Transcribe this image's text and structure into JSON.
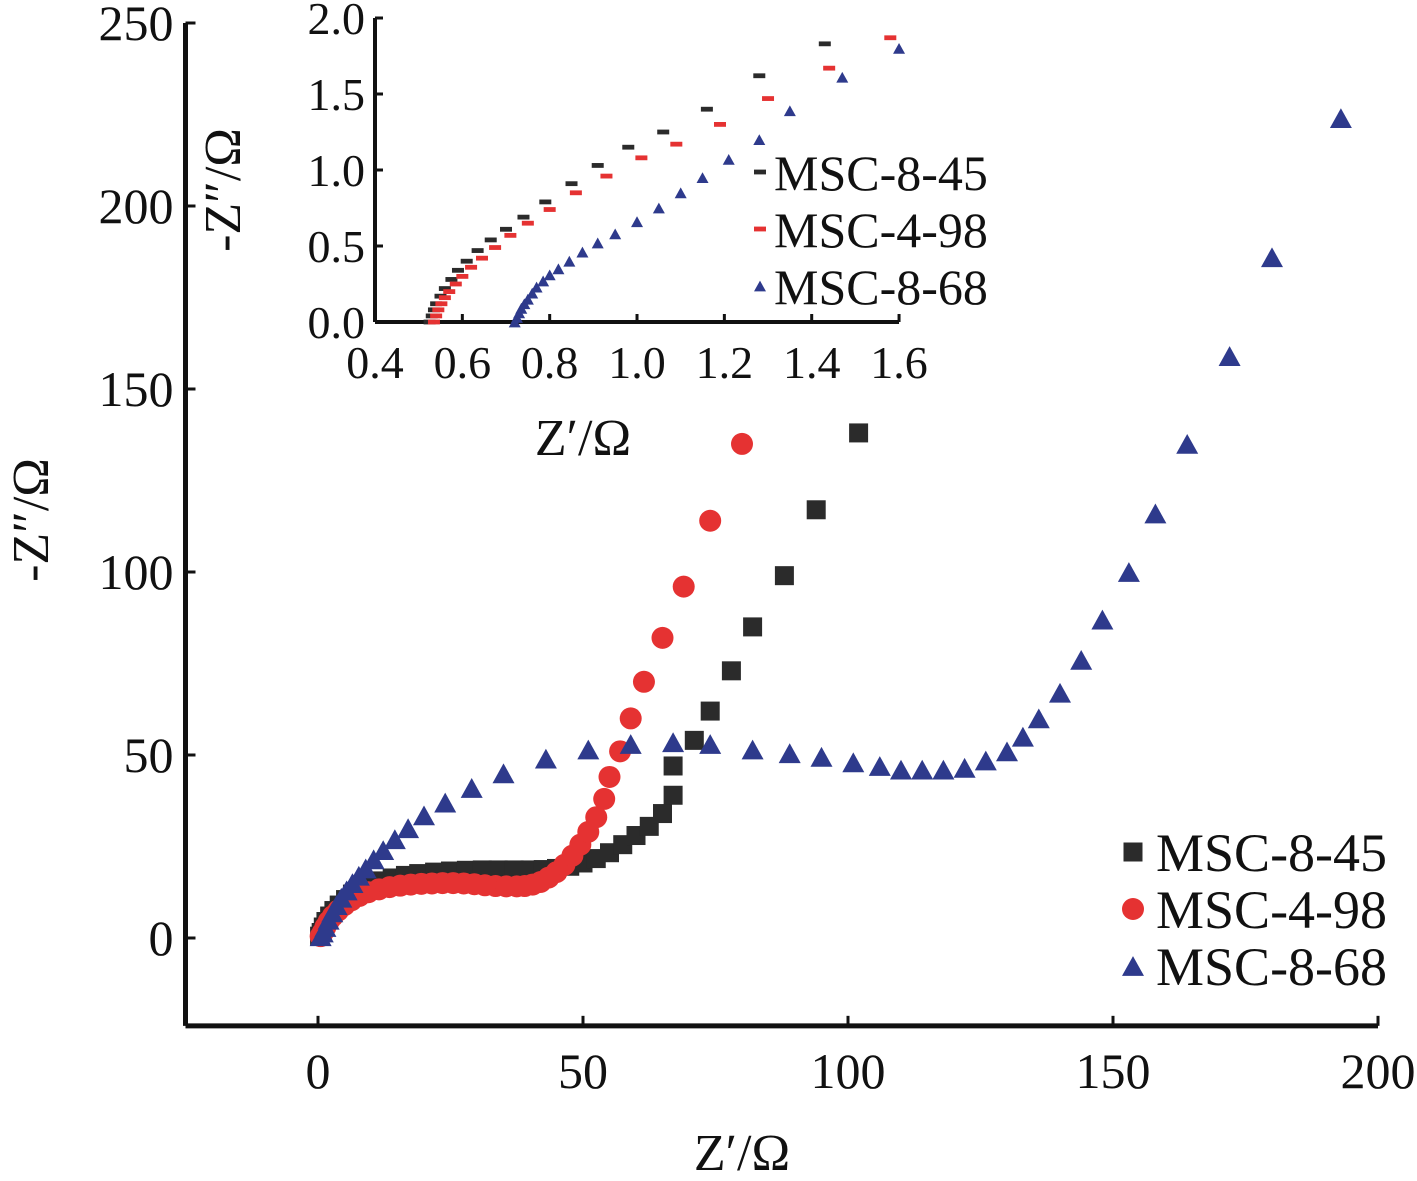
{
  "chart_data": [
    {
      "id": "main",
      "type": "scatter",
      "xlabel": "Z′/Ω",
      "ylabel": "-Z″/Ω",
      "xlim": [
        -25,
        200
      ],
      "ylim": [
        -24,
        250
      ],
      "xticks": [
        "0",
        "50",
        "100",
        "150",
        "200"
      ],
      "yticks": [
        "0",
        "50",
        "100",
        "150",
        "200",
        "250"
      ],
      "legend": "bottom-right",
      "grid": false,
      "series": [
        {
          "name": "MSC-8-45",
          "marker": "square",
          "color": "#2b2b2b",
          "points": [
            [
              0.3,
              0.5
            ],
            [
              0.6,
              1.5
            ],
            [
              1.0,
              3.0
            ],
            [
              1.5,
              4.5
            ],
            [
              2.2,
              6.0
            ],
            [
              3.0,
              7.5
            ],
            [
              4.0,
              9.0
            ],
            [
              5.2,
              10.5
            ],
            [
              6.5,
              12.0
            ],
            [
              8.0,
              13.3
            ],
            [
              10.0,
              14.6
            ],
            [
              12.0,
              15.6
            ],
            [
              14.0,
              16.4
            ],
            [
              16.5,
              17.1
            ],
            [
              19.0,
              17.6
            ],
            [
              22.0,
              18.0
            ],
            [
              25.0,
              18.3
            ],
            [
              28.0,
              18.5
            ],
            [
              31.0,
              18.6
            ],
            [
              34.0,
              18.6
            ],
            [
              37.0,
              18.6
            ],
            [
              40.0,
              18.6
            ],
            [
              42.5,
              18.7
            ],
            [
              45.0,
              19.0
            ],
            [
              47.5,
              19.6
            ],
            [
              50.0,
              20.5
            ],
            [
              52.5,
              21.7
            ],
            [
              55.0,
              23.3
            ],
            [
              57.5,
              25.5
            ],
            [
              60.0,
              28.0
            ],
            [
              62.5,
              30.5
            ],
            [
              65.0,
              34.0
            ],
            [
              67.0,
              39.0
            ],
            [
              67.0,
              47.0
            ],
            [
              71.0,
              54.0
            ],
            [
              74.0,
              62.0
            ],
            [
              78.0,
              73.0
            ],
            [
              82.0,
              85.0
            ],
            [
              88.0,
              99.0
            ],
            [
              94.0,
              117.0
            ],
            [
              102.0,
              138.0
            ]
          ]
        },
        {
          "name": "MSC-4-98",
          "marker": "circle",
          "color": "#e53232",
          "points": [
            [
              0.5,
              0.5
            ],
            [
              0.9,
              1.5
            ],
            [
              1.4,
              3.0
            ],
            [
              2.0,
              4.5
            ],
            [
              2.8,
              6.0
            ],
            [
              3.8,
              7.5
            ],
            [
              5.0,
              9.0
            ],
            [
              6.3,
              10.3
            ],
            [
              7.8,
              11.5
            ],
            [
              9.5,
              12.5
            ],
            [
              11.5,
              13.3
            ],
            [
              13.5,
              13.9
            ],
            [
              15.5,
              14.3
            ],
            [
              17.5,
              14.6
            ],
            [
              19.5,
              14.8
            ],
            [
              21.5,
              14.9
            ],
            [
              23.5,
              15.0
            ],
            [
              25.5,
              15.0
            ],
            [
              27.5,
              14.9
            ],
            [
              29.5,
              14.7
            ],
            [
              31.5,
              14.4
            ],
            [
              33.5,
              14.2
            ],
            [
              35.5,
              14.1
            ],
            [
              37.5,
              14.1
            ],
            [
              39.0,
              14.2
            ],
            [
              40.5,
              14.6
            ],
            [
              42.0,
              15.3
            ],
            [
              43.5,
              16.5
            ],
            [
              45.0,
              18.0
            ],
            [
              46.5,
              20.0
            ],
            [
              48.0,
              22.5
            ],
            [
              49.5,
              25.5
            ],
            [
              51.0,
              29.0
            ],
            [
              52.5,
              33.0
            ],
            [
              54.0,
              38.0
            ],
            [
              55.0,
              44.0
            ],
            [
              57.0,
              51.0
            ],
            [
              59.0,
              60.0
            ],
            [
              61.5,
              70.0
            ],
            [
              65.0,
              82.0
            ],
            [
              69.0,
              96.0
            ],
            [
              74.0,
              114.0
            ],
            [
              80.0,
              135.0
            ]
          ]
        },
        {
          "name": "MSC-8-68",
          "marker": "triangle",
          "color": "#2e3a8c",
          "points": [
            [
              0.5,
              0.5
            ],
            [
              0.9,
              1.5
            ],
            [
              1.4,
              3.0
            ],
            [
              2.0,
              5.0
            ],
            [
              2.7,
              7.0
            ],
            [
              3.5,
              9.0
            ],
            [
              4.4,
              11.0
            ],
            [
              5.4,
              13.0
            ],
            [
              6.5,
              15.0
            ],
            [
              7.7,
              17.0
            ],
            [
              9.0,
              19.0
            ],
            [
              10.5,
              21.5
            ],
            [
              12.3,
              24.0
            ],
            [
              14.5,
              27.0
            ],
            [
              17.0,
              30.0
            ],
            [
              20.0,
              33.5
            ],
            [
              24.0,
              37.0
            ],
            [
              29.0,
              41.0
            ],
            [
              35.0,
              45.0
            ],
            [
              43.0,
              49.0
            ],
            [
              51.0,
              51.5
            ],
            [
              59.0,
              53.0
            ],
            [
              67.0,
              53.5
            ],
            [
              74.0,
              53.0
            ],
            [
              82.0,
              51.5
            ],
            [
              89.0,
              50.5
            ],
            [
              95.0,
              49.5
            ],
            [
              101.0,
              48.0
            ],
            [
              106.0,
              47.0
            ],
            [
              110.0,
              46.0
            ],
            [
              114.0,
              46.0
            ],
            [
              118.0,
              46.0
            ],
            [
              122.0,
              46.5
            ],
            [
              126.0,
              48.5
            ],
            [
              130.0,
              51.0
            ],
            [
              133.0,
              55.0
            ],
            [
              136.0,
              60.0
            ],
            [
              140.0,
              67.0
            ],
            [
              144.0,
              76.0
            ],
            [
              148.0,
              87.0
            ],
            [
              153.0,
              100.0
            ],
            [
              158.0,
              116.0
            ],
            [
              164.0,
              135.0
            ],
            [
              172.0,
              159.0
            ],
            [
              180.0,
              186.0
            ],
            [
              193.0,
              224.0
            ]
          ]
        }
      ]
    },
    {
      "id": "inset",
      "type": "scatter",
      "xlabel": "Z′/Ω",
      "ylabel": "-Z″/Ω",
      "xlim": [
        0.4,
        1.6
      ],
      "ylim": [
        0.0,
        2.0
      ],
      "xticks": [
        "0.4",
        "0.6",
        "0.8",
        "1.0",
        "1.2",
        "1.4",
        "1.6"
      ],
      "yticks": [
        "0.0",
        "0.5",
        "1.0",
        "1.5",
        "2.0"
      ],
      "legend": "right",
      "grid": false,
      "series": [
        {
          "name": "MSC-8-45",
          "marker": "dash",
          "color": "#2b2b2b",
          "points": [
            [
              0.525,
              0.0
            ],
            [
              0.53,
              0.04
            ],
            [
              0.535,
              0.08
            ],
            [
              0.54,
              0.12
            ],
            [
              0.55,
              0.17
            ],
            [
              0.56,
              0.22
            ],
            [
              0.575,
              0.28
            ],
            [
              0.59,
              0.34
            ],
            [
              0.61,
              0.4
            ],
            [
              0.635,
              0.47
            ],
            [
              0.665,
              0.54
            ],
            [
              0.7,
              0.61
            ],
            [
              0.74,
              0.69
            ],
            [
              0.79,
              0.79
            ],
            [
              0.85,
              0.91
            ],
            [
              0.91,
              1.03
            ],
            [
              0.98,
              1.15
            ],
            [
              1.06,
              1.25
            ],
            [
              1.16,
              1.4
            ],
            [
              1.28,
              1.62
            ],
            [
              1.43,
              1.83
            ]
          ]
        },
        {
          "name": "MSC-4-98",
          "marker": "dash",
          "color": "#e53232",
          "points": [
            [
              0.535,
              0.0
            ],
            [
              0.54,
              0.04
            ],
            [
              0.545,
              0.08
            ],
            [
              0.552,
              0.12
            ],
            [
              0.56,
              0.16
            ],
            [
              0.57,
              0.2
            ],
            [
              0.585,
              0.25
            ],
            [
              0.6,
              0.3
            ],
            [
              0.62,
              0.36
            ],
            [
              0.645,
              0.42
            ],
            [
              0.675,
              0.49
            ],
            [
              0.71,
              0.57
            ],
            [
              0.75,
              0.65
            ],
            [
              0.8,
              0.74
            ],
            [
              0.86,
              0.85
            ],
            [
              0.93,
              0.96
            ],
            [
              1.01,
              1.08
            ],
            [
              1.09,
              1.17
            ],
            [
              1.19,
              1.3
            ],
            [
              1.3,
              1.47
            ],
            [
              1.44,
              1.67
            ],
            [
              1.58,
              1.87
            ]
          ]
        },
        {
          "name": "MSC-8-68",
          "marker": "triangle",
          "color": "#2e3a8c",
          "points": [
            [
              0.72,
              0.0
            ],
            [
              0.725,
              0.03
            ],
            [
              0.73,
              0.06
            ],
            [
              0.735,
              0.09
            ],
            [
              0.742,
              0.12
            ],
            [
              0.75,
              0.15
            ],
            [
              0.76,
              0.19
            ],
            [
              0.77,
              0.23
            ],
            [
              0.785,
              0.27
            ],
            [
              0.8,
              0.31
            ],
            [
              0.82,
              0.35
            ],
            [
              0.845,
              0.4
            ],
            [
              0.875,
              0.46
            ],
            [
              0.91,
              0.52
            ],
            [
              0.95,
              0.58
            ],
            [
              1.0,
              0.66
            ],
            [
              1.05,
              0.75
            ],
            [
              1.1,
              0.85
            ],
            [
              1.15,
              0.95
            ],
            [
              1.21,
              1.07
            ],
            [
              1.28,
              1.2
            ],
            [
              1.35,
              1.39
            ],
            [
              1.47,
              1.61
            ],
            [
              1.6,
              1.8
            ]
          ]
        }
      ]
    }
  ]
}
